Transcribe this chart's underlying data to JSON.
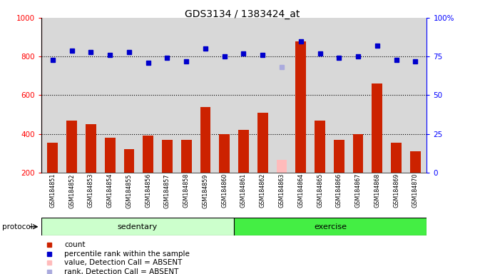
{
  "title": "GDS3134 / 1383424_at",
  "samples": [
    "GSM184851",
    "GSM184852",
    "GSM184853",
    "GSM184854",
    "GSM184855",
    "GSM184856",
    "GSM184857",
    "GSM184858",
    "GSM184859",
    "GSM184860",
    "GSM184861",
    "GSM184862",
    "GSM184863",
    "GSM184864",
    "GSM184865",
    "GSM184866",
    "GSM184867",
    "GSM184868",
    "GSM184869",
    "GSM184870"
  ],
  "bar_values": [
    355,
    470,
    450,
    380,
    320,
    390,
    370,
    370,
    540,
    400,
    420,
    510,
    null,
    880,
    470,
    370,
    400,
    660,
    355,
    310
  ],
  "bar_absent": [
    null,
    null,
    null,
    null,
    null,
    null,
    null,
    null,
    null,
    null,
    null,
    null,
    265,
    null,
    null,
    null,
    null,
    null,
    null,
    null
  ],
  "dot_values": [
    73,
    79,
    78,
    76,
    78,
    71,
    74,
    72,
    80,
    75,
    77,
    76,
    null,
    85,
    77,
    74,
    75,
    82,
    73,
    72
  ],
  "dot_absent": [
    null,
    null,
    null,
    null,
    null,
    null,
    null,
    null,
    null,
    null,
    null,
    null,
    68,
    null,
    null,
    null,
    null,
    null,
    null,
    null
  ],
  "sedentary_count": 10,
  "exercise_count": 10,
  "sedentary_color": "#ccffcc",
  "exercise_color": "#44ee44",
  "bar_color": "#cc2200",
  "bar_absent_color": "#ffbbbb",
  "dot_color": "#0000cc",
  "dot_absent_color": "#aaaadd",
  "ylim_left": [
    200,
    1000
  ],
  "ylim_right": [
    0,
    100
  ],
  "yticks_left": [
    200,
    400,
    600,
    800,
    1000
  ],
  "yticks_right": [
    0,
    25,
    50,
    75,
    100
  ],
  "grid_values": [
    400,
    600,
    800
  ],
  "background_color": "#d8d8d8",
  "title_fontsize": 10
}
